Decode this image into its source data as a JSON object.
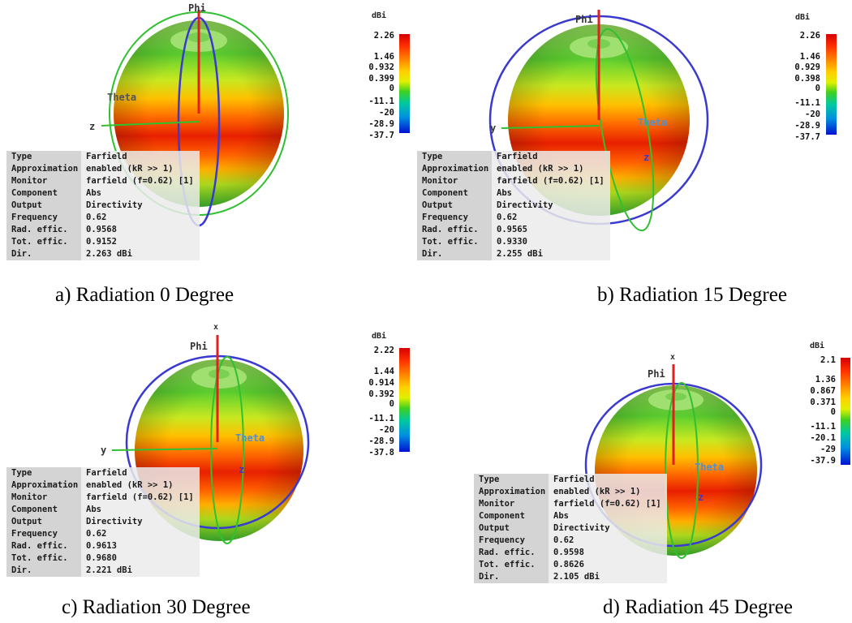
{
  "panels": [
    {
      "caption": "a) Radiation 0 Degree",
      "scale": {
        "unit": "dBi",
        "ticks": [
          "2.26",
          "1.46",
          "0.932",
          "0.399",
          "0",
          "-11.1",
          "-20",
          "-28.9",
          "-37.7"
        ]
      },
      "axes": {
        "up": "Phi",
        "left": "z",
        "mid": "Theta",
        "right": ""
      },
      "info": [
        {
          "key": "Type",
          "value": "Farfield"
        },
        {
          "key": "Approximation",
          "value": "enabled (kR >> 1)"
        },
        {
          "key": "Monitor",
          "value": "farfield (f=0.62) [1]"
        },
        {
          "key": "Component",
          "value": "Abs"
        },
        {
          "key": "Output",
          "value": "Directivity"
        },
        {
          "key": "Frequency",
          "value": "0.62"
        },
        {
          "key": "Rad. effic.",
          "value": "0.9568"
        },
        {
          "key": "Tot. effic.",
          "value": "0.9152"
        },
        {
          "key": "Dir.",
          "value": "2.263 dBi"
        }
      ]
    },
    {
      "caption": "b) Radiation 15 Degree",
      "scale": {
        "unit": "dBi",
        "ticks": [
          "2.26",
          "1.46",
          "0.929",
          "0.398",
          "0",
          "-11.1",
          "-20",
          "-28.9",
          "-37.7"
        ]
      },
      "axes": {
        "up": "Phi",
        "left": "y",
        "mid": "Theta",
        "right": "z"
      },
      "info": [
        {
          "key": "Type",
          "value": "Farfield"
        },
        {
          "key": "Approximation",
          "value": "enabled (kR >> 1)"
        },
        {
          "key": "Monitor",
          "value": "farfield (f=0.62) [1]"
        },
        {
          "key": "Component",
          "value": "Abs"
        },
        {
          "key": "Output",
          "value": "Directivity"
        },
        {
          "key": "Frequency",
          "value": "0.62"
        },
        {
          "key": "Rad. effic.",
          "value": "0.9565"
        },
        {
          "key": "Tot. effic.",
          "value": "0.9330"
        },
        {
          "key": "Dir.",
          "value": "2.255 dBi"
        }
      ]
    },
    {
      "caption": "c) Radiation 30 Degree",
      "scale": {
        "unit": "dBi",
        "ticks": [
          "2.22",
          "1.44",
          "0.914",
          "0.392",
          "0",
          "-11.1",
          "-20",
          "-28.9",
          "-37.8"
        ]
      },
      "axes": {
        "up": "Phi",
        "top": "x",
        "left": "y",
        "mid": "Theta",
        "right": "z"
      },
      "info": [
        {
          "key": "Type",
          "value": "Farfield"
        },
        {
          "key": "Approximation",
          "value": "enabled (kR >> 1)"
        },
        {
          "key": "Monitor",
          "value": "farfield (f=0.62) [1]"
        },
        {
          "key": "Component",
          "value": "Abs"
        },
        {
          "key": "Output",
          "value": "Directivity"
        },
        {
          "key": "Frequency",
          "value": "0.62"
        },
        {
          "key": "Rad. effic.",
          "value": "0.9613"
        },
        {
          "key": "Tot. effic.",
          "value": "0.9680"
        },
        {
          "key": "Dir.",
          "value": "2.221 dBi"
        }
      ]
    },
    {
      "caption": "d) Radiation 45 Degree",
      "scale": {
        "unit": "dBi",
        "ticks": [
          "2.1",
          "1.36",
          "0.867",
          "0.371",
          "0",
          "-11.1",
          "-20.1",
          "-29",
          "-37.9"
        ]
      },
      "axes": {
        "up": "Phi",
        "top": "x",
        "left": "",
        "mid": "Theta",
        "right": "z"
      },
      "info": [
        {
          "key": "Type",
          "value": "Farfield"
        },
        {
          "key": "Approximation",
          "value": "enabled (kR >> 1)"
        },
        {
          "key": "Monitor",
          "value": "farfield (f=0.62) [1]"
        },
        {
          "key": "Component",
          "value": "Abs"
        },
        {
          "key": "Output",
          "value": "Directivity"
        },
        {
          "key": "Frequency",
          "value": "0.62"
        },
        {
          "key": "Rad. effic.",
          "value": "0.9598"
        },
        {
          "key": "Tot. effic.",
          "value": "0.8626"
        },
        {
          "key": "Dir.",
          "value": "2.105 dBi"
        }
      ]
    }
  ],
  "colors": {
    "scale": [
      "#d40000",
      "#ff2000",
      "#ff7000",
      "#ffb000",
      "#ffee00",
      "#c8f000",
      "#40d020",
      "#00c8a0",
      "#0090e0",
      "#0020e0"
    ],
    "phi_axis": "#e02020",
    "theta_ring": "#3a3ad0",
    "phi_ring": "#30c030",
    "axis_label": "#5090d0"
  }
}
